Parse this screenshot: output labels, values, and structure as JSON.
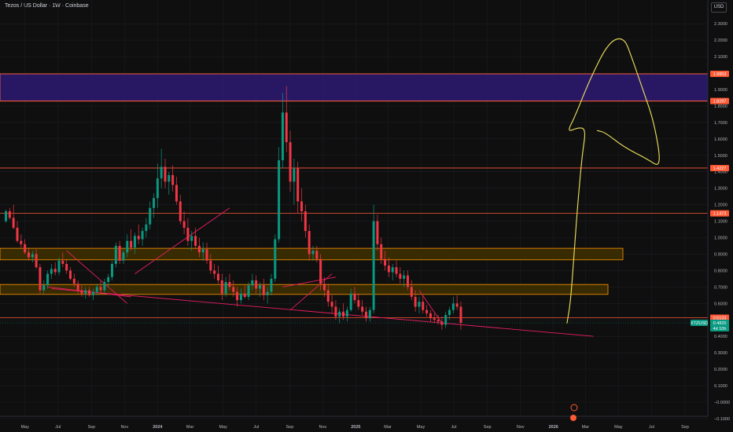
{
  "header": {
    "title": "Tezos / US Dollar · 1W · Coinbase",
    "currency_button": "USD"
  },
  "chart_data": {
    "type": "candlestick",
    "title": "Tezos / US Dollar · 1W · Coinbase",
    "yaxis": {
      "ticks": [
        "2.3000",
        "2.2000",
        "2.1000",
        "1.9000",
        "1.8000",
        "1.7000",
        "1.6000",
        "1.5000",
        "1.4000",
        "1.3000",
        "1.2000",
        "1.1000",
        "1.0000",
        "0.9000",
        "0.8000",
        "0.7000",
        "0.6000",
        "0.5000",
        "0.4000",
        "0.3000",
        "0.2000",
        "0.1000",
        "−0.0000",
        "−0.1000"
      ],
      "ylim": [
        -0.1,
        2.35
      ]
    },
    "xaxis": {
      "ticks": [
        "May",
        "Jul",
        "Sep",
        "Nov",
        "2024",
        "Mar",
        "May",
        "Jul",
        "Sep",
        "Nov",
        "2025",
        "Mar",
        "May",
        "Jul",
        "Sep",
        "Nov",
        "2026",
        "Mar",
        "May",
        "Jul",
        "Sep"
      ],
      "range": [
        "2023-04-17",
        "2026-09-14"
      ]
    },
    "zones": [
      {
        "top": 1.9953,
        "bottom": 1.8297,
        "color": "#2b1a6e",
        "border": "#ff7043"
      },
      {
        "top": 0.935,
        "bottom": 0.865,
        "color": "#3d2e00",
        "border": "#ff9800"
      },
      {
        "top": 0.715,
        "bottom": 0.655,
        "color": "#3d2e00",
        "border": "#ff9800"
      }
    ],
    "levels": [
      {
        "value": 1.9953,
        "label": "1.9953",
        "color": "#ff5a36"
      },
      {
        "value": 1.8297,
        "label": "1.8297",
        "color": "#ff5a36"
      },
      {
        "value": 1.4227,
        "label": "1.4227",
        "color": "#ff5a36"
      },
      {
        "value": 1.1473,
        "label": "1.1473",
        "color": "#ff5a36"
      },
      {
        "value": 0.5133,
        "label": "0.5133",
        "color": "#ff5a36"
      }
    ],
    "price_tag": {
      "symbol": "XTZUSD",
      "value": "0.4820",
      "value_num": 0.482,
      "countdown": "4d 10h",
      "color": "#089981"
    },
    "trendlines": [
      {
        "from": [
          "2023-06-19",
          0.69
        ],
        "to": [
          "2026-03-16",
          0.4
        ],
        "color": "#e91e63"
      },
      {
        "from": [
          "2023-07-17",
          0.92
        ],
        "to": [
          "2023-11-06",
          0.6
        ],
        "color": "#e91e63"
      },
      {
        "from": [
          "2023-06-12",
          0.7
        ],
        "to": [
          "2023-11-13",
          0.64
        ],
        "color": "#e91e63"
      },
      {
        "from": [
          "2023-11-20",
          0.78
        ],
        "to": [
          "2024-05-13",
          1.18
        ],
        "color": "#e91e63"
      },
      {
        "from": [
          "2024-09-02",
          0.56
        ],
        "to": [
          "2024-11-18",
          0.78
        ],
        "color": "#e91e63"
      },
      {
        "from": [
          "2024-08-19",
          0.7
        ],
        "to": [
          "2024-11-25",
          0.76
        ],
        "color": "#e91e63"
      },
      {
        "from": [
          "2025-04-28",
          0.68
        ],
        "to": [
          "2025-06-09",
          0.48
        ],
        "color": "#e91e63"
      }
    ],
    "drawing": {
      "type": "freehand-arrow",
      "color": "#f2e35e",
      "points": [
        [
          "2026-01-26",
          0.48
        ],
        [
          "2026-02-02",
          0.62
        ],
        [
          "2026-02-09",
          0.95
        ],
        [
          "2026-02-16",
          1.25
        ],
        [
          "2026-02-23",
          1.5
        ],
        [
          "2026-03-02",
          1.66
        ],
        [
          "2026-02-16",
          1.67
        ],
        [
          "2026-01-26",
          1.64
        ],
        [
          "2026-02-09",
          1.73
        ],
        [
          "2026-03-09",
          1.96
        ],
        [
          "2026-04-13",
          2.19
        ],
        [
          "2026-05-11",
          2.22
        ],
        [
          "2026-05-25",
          2.1
        ],
        [
          "2026-06-15",
          1.9
        ],
        [
          "2026-07-06",
          1.7
        ],
        [
          "2026-07-20",
          1.42
        ],
        [
          "2026-06-22",
          1.48
        ],
        [
          "2026-05-11",
          1.55
        ],
        [
          "2026-04-06",
          1.64
        ],
        [
          "2026-03-23",
          1.65
        ]
      ]
    },
    "candles": [
      [
        1.1,
        1.17,
        1.09,
        1.16
      ],
      [
        1.16,
        1.18,
        1.11,
        1.12
      ],
      [
        1.12,
        1.2,
        1.05,
        1.06
      ],
      [
        1.06,
        1.1,
        0.97,
        0.98
      ],
      [
        0.98,
        1.02,
        0.94,
        0.96
      ],
      [
        0.96,
        0.99,
        0.9,
        0.91
      ],
      [
        0.91,
        0.94,
        0.86,
        0.88
      ],
      [
        0.88,
        0.92,
        0.85,
        0.9
      ],
      [
        0.9,
        0.93,
        0.81,
        0.82
      ],
      [
        0.82,
        0.84,
        0.66,
        0.68
      ],
      [
        0.68,
        0.74,
        0.66,
        0.71
      ],
      [
        0.71,
        0.8,
        0.69,
        0.78
      ],
      [
        0.78,
        0.84,
        0.75,
        0.81
      ],
      [
        0.81,
        0.85,
        0.77,
        0.79
      ],
      [
        0.79,
        0.88,
        0.77,
        0.86
      ],
      [
        0.86,
        0.91,
        0.82,
        0.84
      ],
      [
        0.84,
        0.87,
        0.78,
        0.8
      ],
      [
        0.8,
        0.82,
        0.74,
        0.75
      ],
      [
        0.75,
        0.78,
        0.7,
        0.72
      ],
      [
        0.72,
        0.74,
        0.66,
        0.68
      ],
      [
        0.68,
        0.71,
        0.64,
        0.66
      ],
      [
        0.66,
        0.7,
        0.63,
        0.68
      ],
      [
        0.68,
        0.7,
        0.64,
        0.65
      ],
      [
        0.65,
        0.69,
        0.62,
        0.67
      ],
      [
        0.67,
        0.72,
        0.65,
        0.7
      ],
      [
        0.7,
        0.74,
        0.66,
        0.68
      ],
      [
        0.68,
        0.75,
        0.66,
        0.73
      ],
      [
        0.73,
        0.78,
        0.7,
        0.76
      ],
      [
        0.76,
        0.86,
        0.74,
        0.84
      ],
      [
        0.84,
        0.97,
        0.82,
        0.95
      ],
      [
        0.95,
        0.98,
        0.84,
        0.86
      ],
      [
        0.86,
        0.93,
        0.84,
        0.91
      ],
      [
        0.91,
        1.02,
        0.88,
        0.98
      ],
      [
        0.98,
        1.05,
        0.92,
        0.94
      ],
      [
        0.94,
        1.03,
        0.9,
        1.01
      ],
      [
        1.01,
        1.08,
        0.96,
        0.99
      ],
      [
        0.99,
        1.06,
        0.95,
        1.04
      ],
      [
        1.04,
        1.12,
        1.0,
        1.08
      ],
      [
        1.08,
        1.22,
        1.05,
        1.18
      ],
      [
        1.18,
        1.27,
        1.12,
        1.24
      ],
      [
        1.24,
        1.45,
        1.18,
        1.36
      ],
      [
        1.36,
        1.54,
        1.3,
        1.43
      ],
      [
        1.43,
        1.48,
        1.3,
        1.34
      ],
      [
        1.34,
        1.4,
        1.26,
        1.38
      ],
      [
        1.38,
        1.44,
        1.28,
        1.32
      ],
      [
        1.32,
        1.37,
        1.2,
        1.22
      ],
      [
        1.22,
        1.26,
        1.08,
        1.1
      ],
      [
        1.1,
        1.16,
        1.02,
        1.06
      ],
      [
        1.06,
        1.12,
        0.95,
        0.98
      ],
      [
        0.98,
        1.04,
        0.92,
        1.01
      ],
      [
        1.01,
        1.06,
        0.93,
        0.95
      ],
      [
        0.95,
        1.0,
        0.88,
        0.91
      ],
      [
        0.91,
        0.97,
        0.86,
        0.93
      ],
      [
        0.93,
        0.97,
        0.84,
        0.86
      ],
      [
        0.86,
        0.9,
        0.78,
        0.8
      ],
      [
        0.8,
        0.84,
        0.75,
        0.78
      ],
      [
        0.78,
        0.83,
        0.72,
        0.74
      ],
      [
        0.74,
        0.78,
        0.62,
        0.66
      ],
      [
        0.66,
        0.76,
        0.64,
        0.73
      ],
      [
        0.73,
        0.78,
        0.68,
        0.7
      ],
      [
        0.7,
        0.74,
        0.64,
        0.67
      ],
      [
        0.67,
        0.7,
        0.58,
        0.62
      ],
      [
        0.62,
        0.69,
        0.6,
        0.66
      ],
      [
        0.66,
        0.71,
        0.63,
        0.64
      ],
      [
        0.64,
        0.73,
        0.62,
        0.71
      ],
      [
        0.71,
        0.78,
        0.68,
        0.74
      ],
      [
        0.74,
        0.77,
        0.66,
        0.69
      ],
      [
        0.69,
        0.73,
        0.64,
        0.71
      ],
      [
        0.71,
        0.75,
        0.62,
        0.65
      ],
      [
        0.65,
        0.7,
        0.6,
        0.67
      ],
      [
        0.67,
        0.78,
        0.65,
        0.75
      ],
      [
        0.75,
        1.02,
        0.73,
        0.99
      ],
      [
        0.99,
        1.55,
        0.97,
        1.47
      ],
      [
        1.47,
        1.88,
        1.42,
        1.76
      ],
      [
        1.76,
        1.92,
        1.52,
        1.58
      ],
      [
        1.58,
        1.65,
        1.28,
        1.34
      ],
      [
        1.34,
        1.48,
        1.2,
        1.42
      ],
      [
        1.42,
        1.46,
        1.15,
        1.22
      ],
      [
        1.22,
        1.3,
        1.1,
        1.16
      ],
      [
        1.16,
        1.2,
        1.0,
        1.04
      ],
      [
        1.04,
        1.08,
        0.86,
        0.9
      ],
      [
        0.9,
        0.95,
        0.86,
        0.92
      ],
      [
        0.92,
        0.95,
        0.85,
        0.87
      ],
      [
        0.87,
        0.9,
        0.68,
        0.72
      ],
      [
        0.72,
        0.76,
        0.64,
        0.68
      ],
      [
        0.68,
        0.72,
        0.58,
        0.61
      ],
      [
        0.61,
        0.65,
        0.54,
        0.58
      ],
      [
        0.58,
        0.62,
        0.5,
        0.52
      ],
      [
        0.52,
        0.57,
        0.48,
        0.55
      ],
      [
        0.55,
        0.6,
        0.5,
        0.52
      ],
      [
        0.52,
        0.58,
        0.49,
        0.56
      ],
      [
        0.56,
        0.69,
        0.55,
        0.66
      ],
      [
        0.66,
        0.7,
        0.6,
        0.62
      ],
      [
        0.62,
        0.66,
        0.56,
        0.58
      ],
      [
        0.58,
        0.62,
        0.53,
        0.55
      ],
      [
        0.55,
        0.58,
        0.49,
        0.51
      ],
      [
        0.51,
        0.58,
        0.49,
        0.56
      ],
      [
        0.56,
        1.2,
        0.54,
        1.1
      ],
      [
        1.1,
        1.14,
        0.92,
        0.96
      ],
      [
        0.96,
        1.0,
        0.84,
        0.87
      ],
      [
        0.87,
        0.92,
        0.8,
        0.83
      ],
      [
        0.83,
        0.88,
        0.76,
        0.79
      ],
      [
        0.79,
        0.84,
        0.74,
        0.82
      ],
      [
        0.82,
        0.86,
        0.76,
        0.78
      ],
      [
        0.78,
        0.82,
        0.72,
        0.75
      ],
      [
        0.75,
        0.8,
        0.7,
        0.77
      ],
      [
        0.77,
        0.8,
        0.68,
        0.7
      ],
      [
        0.7,
        0.74,
        0.62,
        0.64
      ],
      [
        0.64,
        0.68,
        0.55,
        0.58
      ],
      [
        0.58,
        0.64,
        0.54,
        0.61
      ],
      [
        0.61,
        0.65,
        0.54,
        0.56
      ],
      [
        0.56,
        0.59,
        0.52,
        0.54
      ],
      [
        0.54,
        0.56,
        0.49,
        0.51
      ],
      [
        0.51,
        0.54,
        0.48,
        0.5
      ],
      [
        0.5,
        0.53,
        0.47,
        0.49
      ],
      [
        0.49,
        0.52,
        0.44,
        0.47
      ],
      [
        0.47,
        0.55,
        0.45,
        0.53
      ],
      [
        0.53,
        0.58,
        0.5,
        0.56
      ],
      [
        0.56,
        0.64,
        0.54,
        0.6
      ],
      [
        0.6,
        0.65,
        0.56,
        0.58
      ],
      [
        0.58,
        0.61,
        0.44,
        0.482
      ]
    ]
  }
}
